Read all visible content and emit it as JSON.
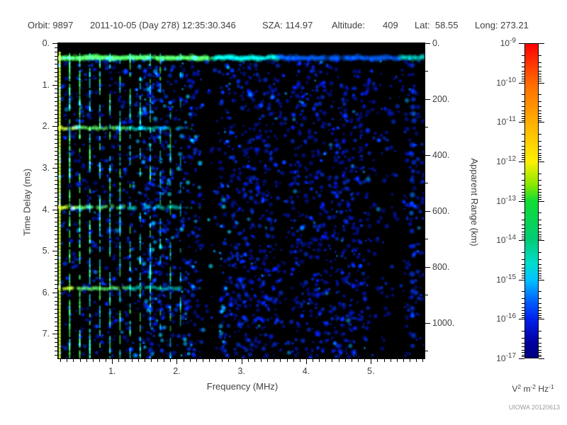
{
  "header": {
    "fields": [
      "Orbit: 9897",
      "2011-10-05 (Day 278) 12:35:30.346",
      "SZA: 114.97",
      "Altitude:",
      "409",
      "Lat:  58.55",
      "Long: 273.21"
    ]
  },
  "footer": {
    "credit": "UIOWA 20120613"
  },
  "chart_data": {
    "type": "heatmap",
    "title": "",
    "xlabel": "Frequency (MHz)",
    "ylabel": "Time Delay (ms)",
    "y2label": "Apparent Range (km)",
    "xlim": [
      0.165,
      5.83
    ],
    "ylim": [
      0,
      7.59
    ],
    "y2lim": [
      0,
      1127
    ],
    "x_ticks": {
      "values": [
        1,
        2,
        3,
        4,
        5
      ],
      "labels": [
        "1.",
        "2.",
        "3.",
        "4.",
        "5."
      ],
      "minor_step": 0.1
    },
    "y_ticks": {
      "values": [
        0,
        1,
        2,
        3,
        4,
        5,
        6,
        7
      ],
      "labels": [
        "0.",
        "1.",
        "2.",
        "3.",
        "4.",
        "5.",
        "6.",
        "7."
      ],
      "minor_step": 0.1
    },
    "y2_ticks": {
      "values": [
        0,
        200,
        400,
        600,
        800,
        1000
      ],
      "labels": [
        "0.",
        "200.",
        "400.",
        "600.",
        "800.",
        "1000."
      ],
      "minor_step": 100
    },
    "colorbar": {
      "scale": "log",
      "base": "10",
      "tick_exponents": [
        "-9",
        "-10",
        "-11",
        "-12",
        "-13",
        "-14",
        "-15",
        "-16",
        "-17"
      ],
      "units_parts": [
        {
          "b": "V",
          "e": "2"
        },
        {
          "b": "m",
          "e": "-2"
        },
        {
          "b": "Hz",
          "e": "-1"
        }
      ],
      "gradient": [
        {
          "p": 0.0,
          "c": "#ff0000"
        },
        {
          "p": 0.125,
          "c": "#ff6a00"
        },
        {
          "p": 0.25,
          "c": "#ffb000"
        },
        {
          "p": 0.375,
          "c": "#fff000"
        },
        {
          "p": 0.45,
          "c": "#88e800"
        },
        {
          "p": 0.5,
          "c": "#11dd33"
        },
        {
          "p": 0.625,
          "c": "#00cc77"
        },
        {
          "p": 0.7,
          "c": "#00ddcc"
        },
        {
          "p": 0.75,
          "c": "#00c4ff"
        },
        {
          "p": 0.82,
          "c": "#0060ff"
        },
        {
          "p": 0.875,
          "c": "#0022ee"
        },
        {
          "p": 0.95,
          "c": "#0000a0"
        },
        {
          "p": 1.0,
          "c": "#000080"
        }
      ]
    },
    "features": {
      "seed": 9897,
      "background": "#000000",
      "surface_band_ms": 0.35,
      "top_black_ms": 0.2,
      "cyclotron_echo_ms": [
        2.05,
        3.95,
        5.9
      ],
      "echo_extent_frac": 0.34,
      "plasma_stripes": {
        "count": 13,
        "x_start_frac": 0.004,
        "spacing_frac": 0.0275
      },
      "edge_column_frac": 0.968,
      "noise_regions": [
        {
          "x0": 0.0,
          "x1": 0.22,
          "d": 0.4
        },
        {
          "x0": 0.22,
          "x1": 0.3,
          "d": 0.85
        },
        {
          "x0": 0.3,
          "x1": 0.335,
          "d": 0.45
        },
        {
          "x0": 0.335,
          "x1": 0.39,
          "d": 0.75
        },
        {
          "x0": 0.39,
          "x1": 0.44,
          "d": 0.12
        },
        {
          "x0": 0.44,
          "x1": 0.6,
          "d": 0.7
        },
        {
          "x0": 0.6,
          "x1": 0.635,
          "d": 0.3
        },
        {
          "x0": 0.635,
          "x1": 0.85,
          "d": 0.62
        },
        {
          "x0": 0.85,
          "x1": 0.945,
          "d": 0.18
        },
        {
          "x0": 0.945,
          "x1": 1.0,
          "d": 0.45
        }
      ],
      "palette": {
        "noise_blue": "#0018cc",
        "noise_blue2": "#0038ff",
        "noise_cyan": "#00a8ff",
        "speckle_bright": "#00e0ff",
        "stripe_green": "#33dd55",
        "stripe_cyan": "#00ccdd",
        "stripe_bright": "#aaee22",
        "band_green": "#44e055",
        "band_cyan": "#00d8cc",
        "band_blue": "#0060ff",
        "echo_green": "#55e060",
        "echo_yellow": "#b8ee30",
        "edge_blue": "#0070ff"
      }
    }
  }
}
